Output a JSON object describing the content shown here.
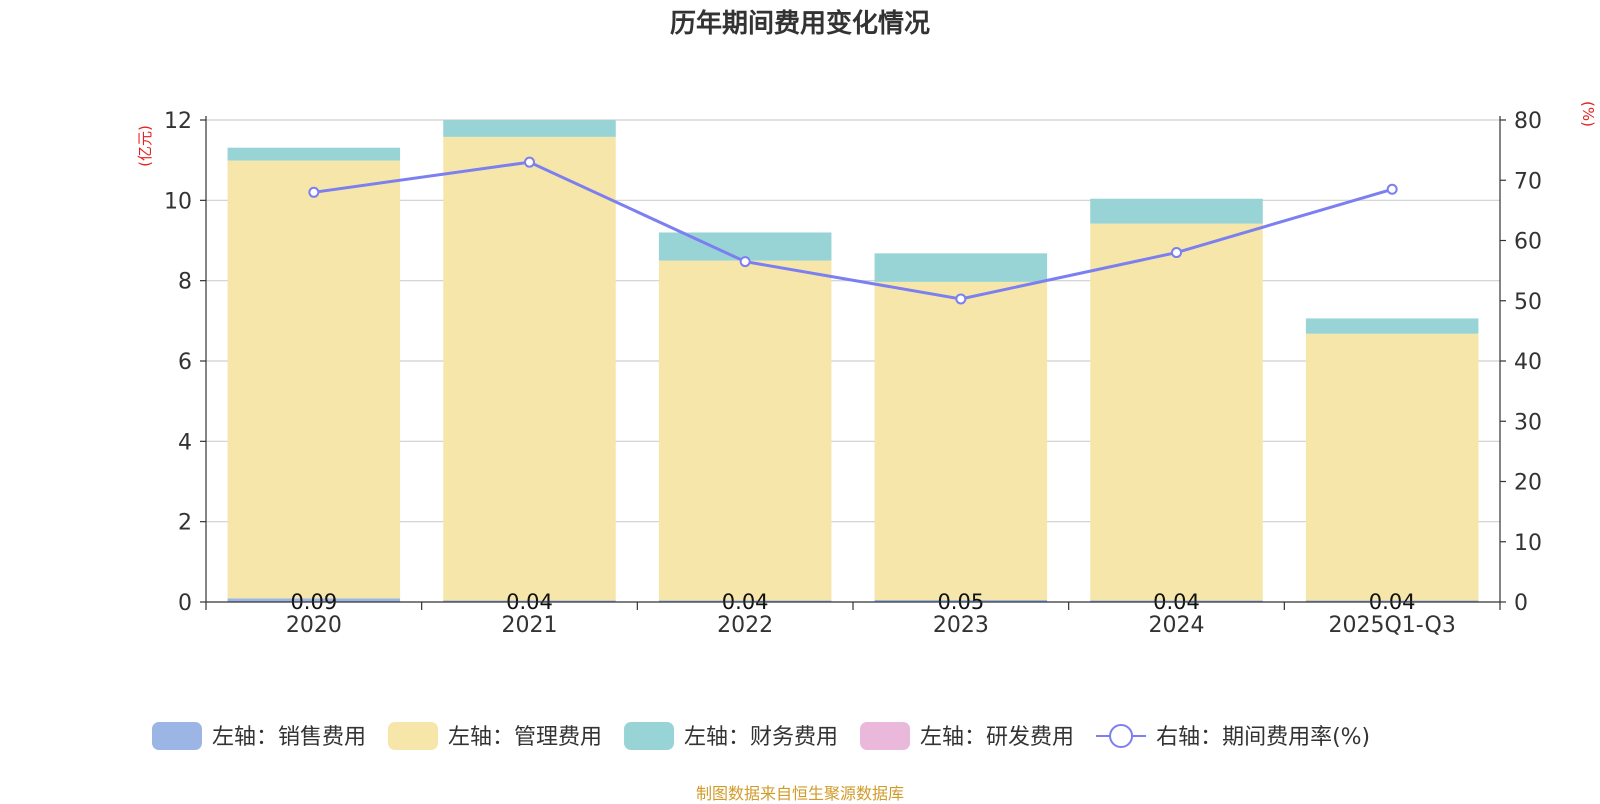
{
  "chart_data": {
    "type": "bar",
    "title": "历年期间费用变化情况",
    "categories": [
      "2020",
      "2021",
      "2022",
      "2023",
      "2024",
      "2025Q1-Q3"
    ],
    "left_axis": {
      "label": "(亿元)",
      "ylim": [
        0,
        12
      ],
      "ticks": [
        "0",
        "2",
        "4",
        "6",
        "8",
        "10",
        "12"
      ]
    },
    "right_axis": {
      "label": "(%)",
      "ylim": [
        0,
        80
      ],
      "ticks": [
        "0",
        "10",
        "20",
        "30",
        "40",
        "50",
        "60",
        "70",
        "80"
      ]
    },
    "series": [
      {
        "name": "左轴：销售费用",
        "stack": true,
        "color": "#9bb5e4",
        "values": [
          0.09,
          0.04,
          0.04,
          0.05,
          0.04,
          0.04
        ],
        "labels": [
          "0.09",
          "0.04",
          "0.04",
          "0.05",
          "0.04",
          "0.04"
        ]
      },
      {
        "name": "左轴：管理费用",
        "stack": true,
        "color": "#f7e6a9",
        "values": [
          10.9,
          11.54,
          8.46,
          7.92,
          9.38,
          6.64
        ]
      },
      {
        "name": "左轴：财务费用",
        "stack": true,
        "color": "#98d4d6",
        "values": [
          0.32,
          0.42,
          0.7,
          0.71,
          0.62,
          0.38
        ]
      },
      {
        "name": "左轴：研发费用",
        "stack": true,
        "color": "#e9b8db",
        "values": [
          0,
          0,
          0,
          0,
          0,
          0
        ]
      },
      {
        "name": "右轴：期间费用率(%)",
        "type": "line",
        "axis": "right",
        "color": "#7b7ff0",
        "values": [
          68.0,
          73.0,
          56.5,
          50.3,
          58.0,
          68.5
        ]
      }
    ],
    "legend_position": "bottom",
    "grid": true
  },
  "footer": "制图数据来自恒生聚源数据库"
}
